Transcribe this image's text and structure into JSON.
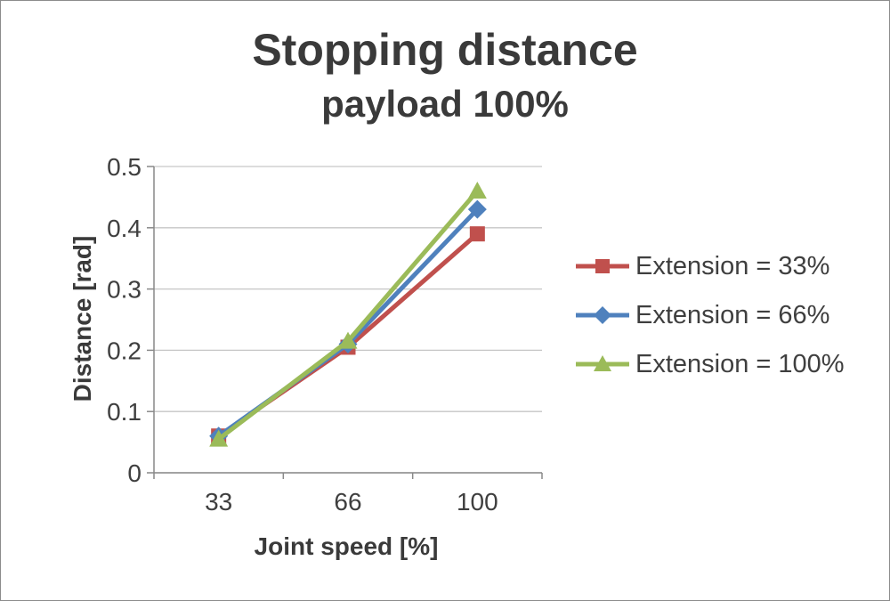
{
  "chart_data": {
    "type": "line",
    "title": "Stopping distance",
    "subtitle": "payload 100%",
    "xlabel": "Joint speed [%]",
    "ylabel": "Distance [rad]",
    "categories": [
      "33",
      "66",
      "100"
    ],
    "series": [
      {
        "name": "Extension = 33%",
        "color": "#C0504D",
        "marker": "square",
        "values": [
          0.06,
          0.205,
          0.39
        ]
      },
      {
        "name": "Extension = 66%",
        "color": "#4F81BD",
        "marker": "diamond",
        "values": [
          0.06,
          0.21,
          0.43
        ]
      },
      {
        "name": "Extension = 100%",
        "color": "#9BBB59",
        "marker": "triangle",
        "values": [
          0.055,
          0.215,
          0.46
        ]
      }
    ],
    "ylim": [
      0,
      0.5
    ],
    "yticks": [
      0,
      0.1,
      0.2,
      0.3,
      0.4,
      0.5
    ],
    "grid": "horizontal",
    "legend_position": "right",
    "colors": {
      "text": "#3f3f3f",
      "gridline": "#c6c6c6",
      "axis": "#898989",
      "background": "#ffffff"
    }
  }
}
